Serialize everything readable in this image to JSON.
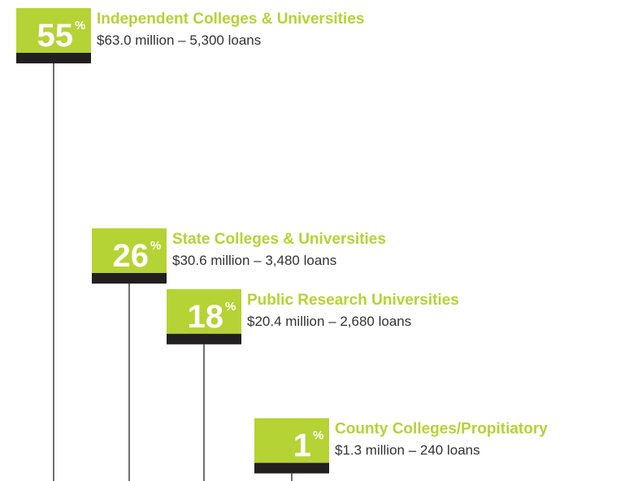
{
  "chart_data": {
    "type": "bar",
    "categories": [
      "Independent Colleges & Universities",
      "State Colleges & Universities",
      "Public Research Universities",
      "County Colleges/Propitiatory"
    ],
    "values": [
      55,
      26,
      18,
      1
    ],
    "unit": "%",
    "details": [
      "$63.0 million – 5,300 loans",
      "$30.6 million – 3,480 loans",
      "$20.4 million – 2,680 loans",
      "$1.3 million – 240 loans"
    ],
    "color": "#b5d334"
  }
}
